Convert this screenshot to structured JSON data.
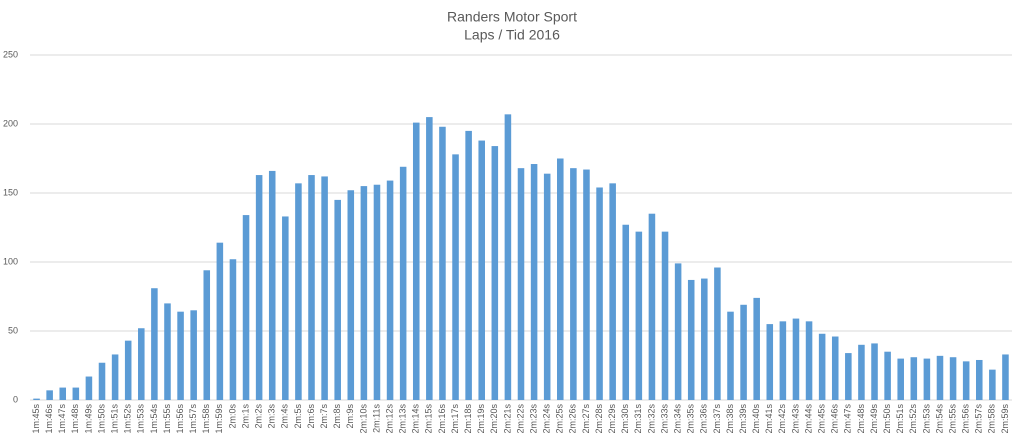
{
  "chart_data": {
    "type": "bar",
    "title": "Randers Motor Sport",
    "subtitle": "Laps / Tid 2016",
    "categories": [
      "1m:45s",
      "1m:46s",
      "1m:47s",
      "1m:48s",
      "1m:49s",
      "1m:50s",
      "1m:51s",
      "1m:52s",
      "1m:53s",
      "1m:54s",
      "1m:55s",
      "1m:56s",
      "1m:57s",
      "1m:58s",
      "1m:59s",
      "2m:0s",
      "2m:1s",
      "2m:2s",
      "2m:3s",
      "2m:4s",
      "2m:5s",
      "2m:6s",
      "2m:7s",
      "2m:8s",
      "2m:9s",
      "2m:10s",
      "2m:11s",
      "2m:12s",
      "2m:13s",
      "2m:14s",
      "2m:15s",
      "2m:16s",
      "2m:17s",
      "2m:18s",
      "2m:19s",
      "2m:20s",
      "2m:21s",
      "2m:22s",
      "2m:23s",
      "2m:24s",
      "2m:25s",
      "2m:26s",
      "2m:27s",
      "2m:28s",
      "2m:29s",
      "2m:30s",
      "2m:31s",
      "2m:32s",
      "2m:33s",
      "2m:34s",
      "2m:35s",
      "2m:36s",
      "2m:37s",
      "2m:38s",
      "2m:39s",
      "2m:40s",
      "2m:41s",
      "2m:42s",
      "2m:43s",
      "2m:44s",
      "2m:45s",
      "2m:46s",
      "2m:47s",
      "2m:48s",
      "2m:49s",
      "2m:50s",
      "2m:51s",
      "2m:52s",
      "2m:53s",
      "2m:54s",
      "2m:55s",
      "2m:56s",
      "2m:57s",
      "2m:58s",
      "2m:59s"
    ],
    "values": [
      1,
      7,
      9,
      9,
      17,
      27,
      33,
      43,
      52,
      81,
      70,
      64,
      65,
      94,
      114,
      102,
      134,
      163,
      166,
      133,
      157,
      163,
      162,
      145,
      152,
      155,
      156,
      159,
      169,
      201,
      205,
      198,
      178,
      195,
      188,
      184,
      207,
      168,
      171,
      164,
      175,
      168,
      167,
      154,
      157,
      127,
      122,
      135,
      122,
      99,
      87,
      88,
      96,
      64,
      69,
      74,
      55,
      57,
      59,
      57,
      48,
      46,
      34,
      40,
      41,
      35,
      30,
      31,
      30,
      32,
      31,
      28,
      29,
      22,
      33
    ],
    "color": "#5b9bd5",
    "ylim": [
      0,
      250
    ],
    "yticks": [
      0,
      50,
      100,
      150,
      200,
      250
    ],
    "grid": true
  }
}
